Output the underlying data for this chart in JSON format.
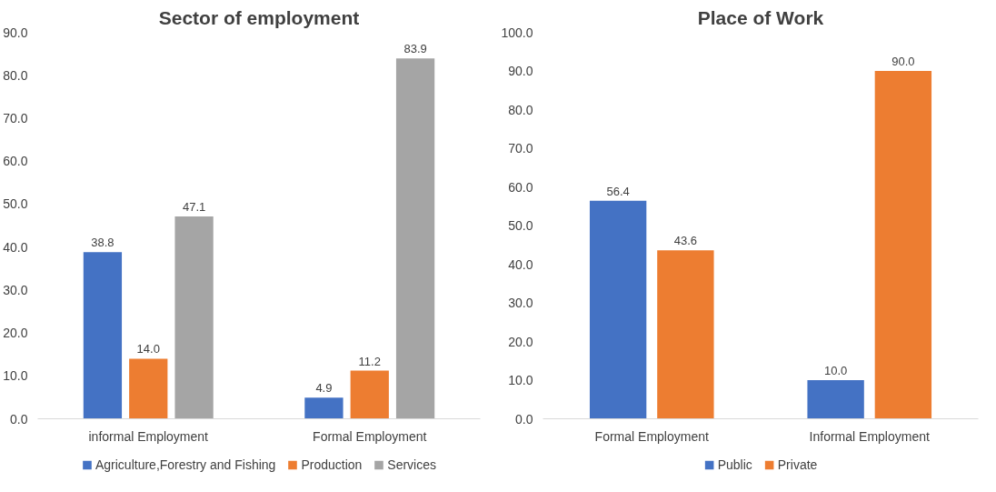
{
  "chart_data": [
    {
      "type": "bar",
      "title": "Sector of employment",
      "categories": [
        "informal Employment",
        "Formal Employment"
      ],
      "series": [
        {
          "name": "Agriculture,Forestry and Fishing",
          "color": "#4472c4",
          "values": [
            38.8,
            4.9
          ],
          "value_labels": [
            "38.8",
            "4.9"
          ]
        },
        {
          "name": "Production",
          "color": "#ed7d31",
          "values": [
            14.0,
            11.2
          ],
          "value_labels": [
            "14.0",
            "11.2"
          ]
        },
        {
          "name": "Services",
          "color": "#a5a5a5",
          "values": [
            47.1,
            83.9
          ],
          "value_labels": [
            "47.1",
            "83.9"
          ]
        }
      ],
      "ylim": [
        0,
        90
      ],
      "yticks": [
        {
          "value": 0,
          "label": "0.0"
        },
        {
          "value": 10,
          "label": "10.0"
        },
        {
          "value": 20,
          "label": "20.0"
        },
        {
          "value": 30,
          "label": "30.0"
        },
        {
          "value": 40,
          "label": "40.0"
        },
        {
          "value": 50,
          "label": "50.0"
        },
        {
          "value": 60,
          "label": "60.0"
        },
        {
          "value": 70,
          "label": "70.0"
        },
        {
          "value": 80,
          "label": "80.0"
        },
        {
          "value": 90,
          "label": "90.0"
        }
      ],
      "grid": false,
      "legend": "bottom"
    },
    {
      "type": "bar",
      "title": "Place of Work",
      "categories": [
        "Formal Employment",
        "Informal Employment"
      ],
      "series": [
        {
          "name": "Public",
          "color": "#4472c4",
          "values": [
            56.4,
            10.0
          ],
          "value_labels": [
            "56.4",
            "10.0"
          ]
        },
        {
          "name": "Private",
          "color": "#ed7d31",
          "values": [
            43.6,
            90.0
          ],
          "value_labels": [
            "43.6",
            "90.0"
          ]
        }
      ],
      "ylim": [
        0,
        100
      ],
      "yticks": [
        {
          "value": 0,
          "label": "0.0"
        },
        {
          "value": 10,
          "label": "10.0"
        },
        {
          "value": 20,
          "label": "20.0"
        },
        {
          "value": 30,
          "label": "30.0"
        },
        {
          "value": 40,
          "label": "40.0"
        },
        {
          "value": 50,
          "label": "50.0"
        },
        {
          "value": 60,
          "label": "60.0"
        },
        {
          "value": 70,
          "label": "70.0"
        },
        {
          "value": 80,
          "label": "80.0"
        },
        {
          "value": 90,
          "label": "90.0"
        },
        {
          "value": 100,
          "label": "100.0"
        }
      ],
      "grid": false,
      "legend": "bottom"
    }
  ]
}
